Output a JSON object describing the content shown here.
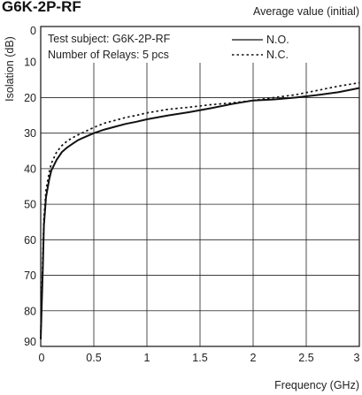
{
  "chart_data": {
    "type": "line",
    "title": "G6K-2P-RF",
    "subtitle": "Average value (initial)",
    "xlabel": "Frequency (GHz)",
    "ylabel": "Isolation (dB)",
    "xlim": [
      0,
      3
    ],
    "ylim": [
      0,
      90
    ],
    "y_inverted": true,
    "x_ticks": [
      "0",
      "0.5",
      "1",
      "1.5",
      "2",
      "2.5",
      "3"
    ],
    "y_ticks": [
      "0",
      "10",
      "20",
      "30",
      "40",
      "50",
      "60",
      "70",
      "80",
      "90"
    ],
    "grid": true,
    "annotations": [
      "Test subject: G6K-2P-RF",
      "Number of Relays: 5 pcs"
    ],
    "legend_position": "top-right",
    "series": [
      {
        "name": "N.O.",
        "style": "solid",
        "color": "#111111",
        "x": [
          0.0,
          0.02,
          0.03,
          0.05,
          0.08,
          0.1,
          0.15,
          0.2,
          0.25,
          0.3,
          0.35,
          0.4,
          0.5,
          0.6,
          0.7,
          0.8,
          0.9,
          1.0,
          1.2,
          1.4,
          1.6,
          1.8,
          2.0,
          2.2,
          2.4,
          2.6,
          2.8,
          3.0
        ],
        "y": [
          88,
          68,
          56,
          48,
          43,
          40.5,
          37.5,
          35.3,
          34,
          33,
          32,
          31.3,
          30,
          29,
          28.2,
          27.4,
          26.8,
          26.1,
          25,
          24.1,
          23,
          21.8,
          20.8,
          20.5,
          20,
          19.3,
          18.5,
          17.3
        ]
      },
      {
        "name": "N.C.",
        "style": "dotted",
        "color": "#111111",
        "x": [
          0.0,
          0.02,
          0.03,
          0.05,
          0.08,
          0.1,
          0.15,
          0.2,
          0.25,
          0.3,
          0.35,
          0.4,
          0.5,
          0.6,
          0.7,
          0.8,
          0.9,
          1.0,
          1.2,
          1.4,
          1.6,
          1.8,
          2.0,
          2.2,
          2.4,
          2.6,
          2.8,
          3.0
        ],
        "y": [
          86,
          64,
          54,
          46,
          41,
          38.5,
          35.3,
          33.5,
          32.2,
          31.3,
          30.5,
          29.8,
          28.4,
          27.2,
          26.4,
          25.6,
          25,
          24.3,
          23.3,
          22.7,
          22,
          21.5,
          20.8,
          20,
          19.2,
          18,
          16.8,
          15.8
        ]
      }
    ]
  }
}
